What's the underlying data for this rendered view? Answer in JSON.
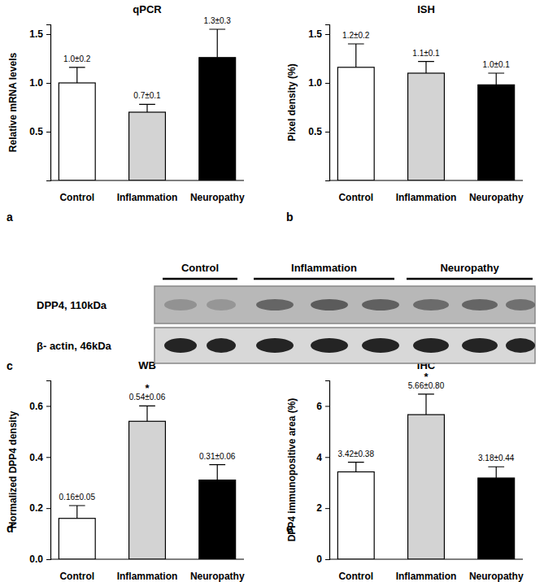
{
  "chart_data": [
    {
      "type": "bar",
      "panel": "a",
      "title": "qPCR",
      "y_label": "Relative mRNA levels",
      "categories": [
        "Control",
        "Inflammation",
        "Neuropathy"
      ],
      "values": [
        1.0,
        0.7,
        1.26
      ],
      "errors": [
        0.16,
        0.08,
        0.29
      ],
      "value_labels": [
        "1.0±0.2",
        "0.7±0.1",
        "1.3±0.3"
      ],
      "colors": [
        "#ffffff",
        "#d3d3d3",
        "#000000"
      ],
      "ylim": [
        0,
        1.6
      ],
      "yticks": [
        0.5,
        {
          "value": 1,
          "label": "1.0"
        },
        1.5
      ],
      "data_labels": true
    },
    {
      "type": "bar",
      "panel": "b",
      "title": "ISH",
      "y_label": "Pixel density (%)",
      "categories": [
        "Control",
        "Inflammation",
        "Neuropathy"
      ],
      "values": [
        1.16,
        1.1,
        0.98
      ],
      "errors": [
        0.24,
        0.12,
        0.12
      ],
      "value_labels": [
        "1.2±0.2",
        "1.1±0.1",
        "1.0±0.1"
      ],
      "colors": [
        "#ffffff",
        "#d3d3d3",
        "#000000"
      ],
      "ylim": [
        0,
        1.6
      ],
      "yticks": [
        0.5,
        {
          "value": 1,
          "label": "1.0"
        },
        1.5
      ],
      "data_labels": true
    },
    {
      "type": "bar",
      "panel": "d",
      "title": "WB",
      "y_label": "Normalized DPP4 density",
      "categories": [
        "Control",
        "Inflammation",
        "Neuropathy"
      ],
      "values": [
        0.16,
        0.54,
        0.31
      ],
      "errors": [
        0.05,
        0.06,
        0.06
      ],
      "value_labels": [
        "0.16±0.05",
        "0.54±0.06",
        "0.31±0.06"
      ],
      "annotations": [
        null,
        "*",
        null
      ],
      "colors": [
        "#ffffff",
        "#d3d3d3",
        "#000000"
      ],
      "ylim": [
        0,
        0.7
      ],
      "yticks": [
        {
          "value": 0,
          "label": "0.0"
        },
        0.2,
        0.4,
        0.6
      ],
      "data_labels": true
    },
    {
      "type": "bar",
      "panel": "e",
      "title": "IHC",
      "y_label": "DPP4 immunopositive area (%)",
      "categories": [
        "Control",
        "Inflammation",
        "Neuropathy"
      ],
      "values": [
        3.42,
        5.66,
        3.18
      ],
      "errors": [
        0.38,
        0.8,
        0.44
      ],
      "value_labels": [
        "3.42±0.38",
        "5.66±0.80",
        "3.18±0.44"
      ],
      "annotations": [
        null,
        "*",
        null
      ],
      "colors": [
        "#ffffff",
        "#d3d3d3",
        "#000000"
      ],
      "ylim": [
        0,
        7
      ],
      "yticks": [
        0,
        2,
        4,
        6
      ],
      "data_labels": true
    }
  ],
  "blot": {
    "panel": "c",
    "groups": [
      "Control",
      "Inflammation",
      "Neuropathy"
    ],
    "rows": [
      "DPP4, 110kDa",
      "β- actin, 46kDa"
    ]
  }
}
